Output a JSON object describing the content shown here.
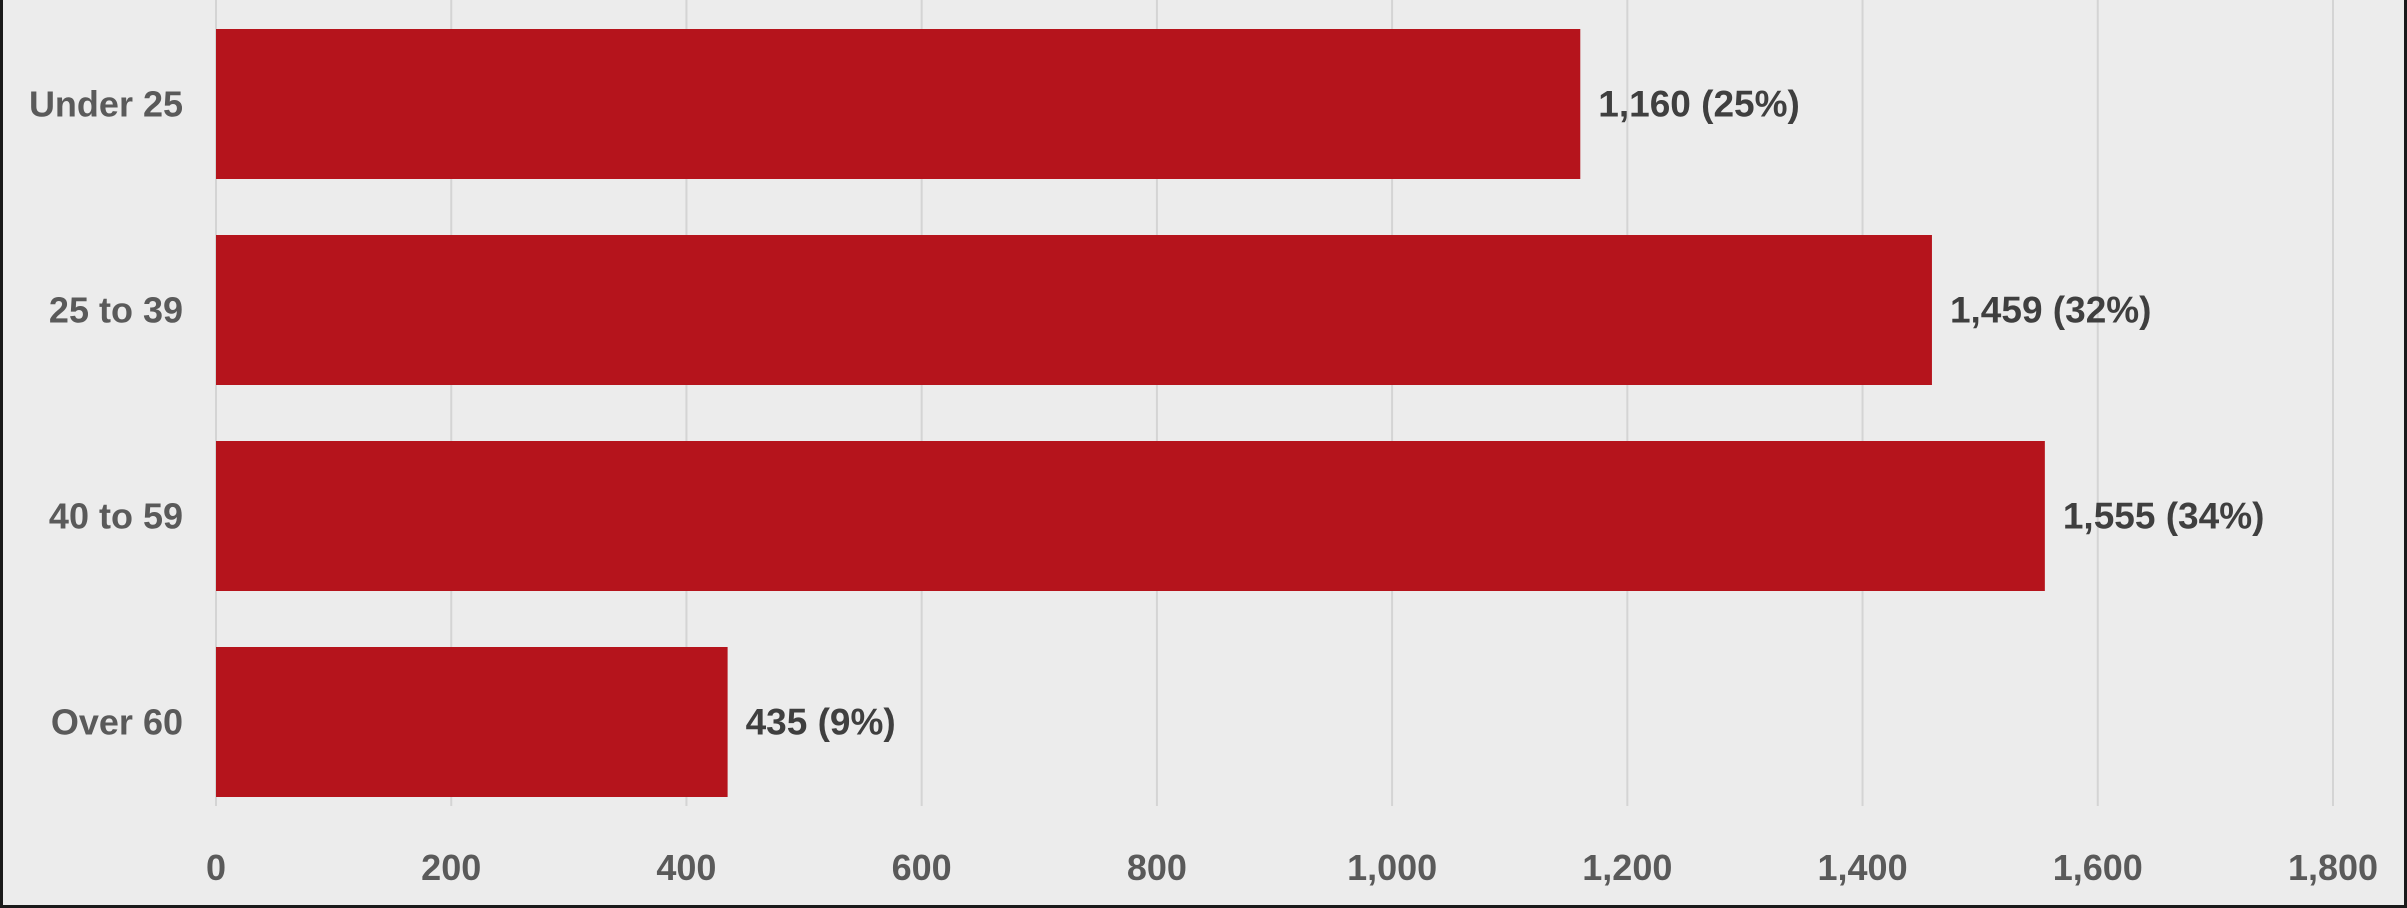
{
  "chart_data": {
    "type": "bar",
    "orientation": "horizontal",
    "title": "",
    "xlabel": "",
    "ylabel": "",
    "categories": [
      "Under 25",
      "25 to 39",
      "40 to 59",
      "Over 60"
    ],
    "values": [
      1160,
      1459,
      1555,
      435
    ],
    "data_labels": [
      "1,160 (25%)",
      "1,459 (32%)",
      "1,555 (34%)",
      "435 (9%)"
    ],
    "xlim": [
      0,
      1800
    ],
    "x_ticks": [
      0,
      200,
      400,
      600,
      800,
      1000,
      1200,
      1400,
      1600,
      1800
    ],
    "x_tick_labels": [
      "0",
      "200",
      "400",
      "600",
      "800",
      "1,000",
      "1,200",
      "1,400",
      "1,600",
      "1,800"
    ],
    "grid": "vertical",
    "legend": "none",
    "colors": {
      "bar": "#b5141c",
      "background": "#ececec",
      "grid": "#d4d4d4",
      "label_text": "#5a5a5a",
      "data_label_text": "#3f3f3f"
    }
  }
}
